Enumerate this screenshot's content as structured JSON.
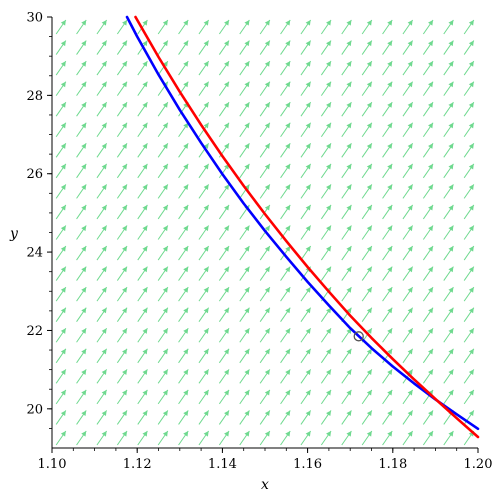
{
  "chart_data": {
    "type": "line",
    "title": "",
    "xlabel": "x",
    "ylabel": "y",
    "xlim": [
      1.1,
      1.2
    ],
    "ylim": [
      19.0,
      30.0
    ],
    "x_ticks": [
      "1.10",
      "1.12",
      "1.14",
      "1.16",
      "1.18",
      "1.20"
    ],
    "y_ticks": [
      "20",
      "22",
      "24",
      "26",
      "28",
      "30"
    ],
    "grid": false,
    "legend": "none",
    "direction_field": {
      "color": "#6fd98f",
      "slope_dx": 0.0035,
      "slope_dy": -0.55
    },
    "series": [
      {
        "color": "#ff0000",
        "x": [
          1.1196,
          1.125,
          1.13,
          1.135,
          1.14,
          1.145,
          1.15,
          1.155,
          1.16,
          1.165,
          1.17,
          1.175,
          1.18,
          1.185,
          1.19,
          1.195,
          1.2
        ],
        "y": [
          30.0,
          28.98,
          28.09,
          27.25,
          26.45,
          25.69,
          24.97,
          24.28,
          23.62,
          22.99,
          22.38,
          21.81,
          21.27,
          20.75,
          20.25,
          19.76,
          19.28
        ]
      },
      {
        "color": "#0000ff",
        "x": [
          1.1176,
          1.12,
          1.125,
          1.13,
          1.135,
          1.14,
          1.145,
          1.15,
          1.155,
          1.16,
          1.165,
          1.17,
          1.175,
          1.18,
          1.185,
          1.19,
          1.195,
          1.2
        ],
        "y": [
          30.0,
          29.5,
          28.53,
          27.63,
          26.79,
          25.99,
          25.24,
          24.54,
          23.88,
          23.24,
          22.64,
          22.06,
          21.55,
          21.08,
          20.65,
          20.24,
          19.86,
          19.49
        ]
      }
    ],
    "point": {
      "x": 1.172,
      "y": 21.85,
      "color": "#555555"
    }
  }
}
